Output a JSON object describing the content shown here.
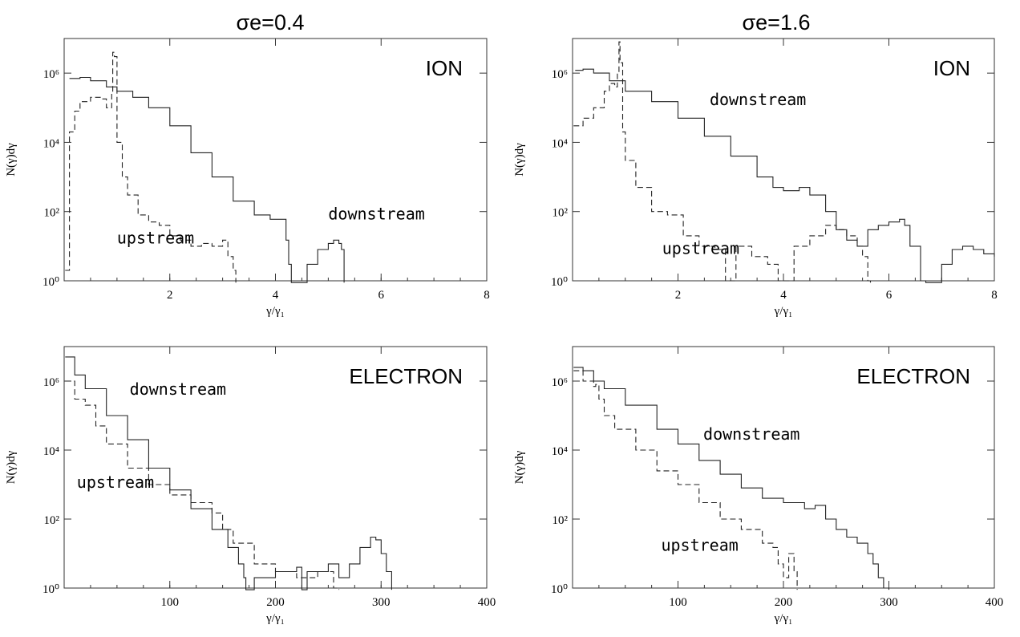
{
  "column_titles": [
    "σe=0.4",
    "σe=1.6"
  ],
  "chart_data": [
    {
      "type": "line",
      "scale_y": "log",
      "ylim": [
        1,
        10000000
      ],
      "xlim": [
        0,
        8
      ],
      "xticks": [
        2,
        4,
        6,
        8
      ],
      "yticks": [
        1,
        100,
        10000,
        1000000
      ],
      "ytick_labels": [
        "10⁰",
        "10²",
        "10⁴",
        "10⁶"
      ],
      "xlabel": "γ/γ₁",
      "ylabel": "N(γ)dγ",
      "label": "ION",
      "annotations": [
        {
          "text": "downstream",
          "x": 5.0,
          "y": 60
        },
        {
          "text": "upstream",
          "x": 1.0,
          "y": 12
        }
      ],
      "series": [
        {
          "name": "downstream",
          "style": "solid",
          "x": [
            0.1,
            0.3,
            0.5,
            0.8,
            1.0,
            1.3,
            1.6,
            2.0,
            2.4,
            2.8,
            3.2,
            3.6,
            3.9,
            4.2,
            4.25,
            4.3,
            4.55,
            4.6,
            4.8,
            5.0,
            5.1,
            5.2,
            5.25,
            5.3
          ],
          "y": [
            700000,
            750000,
            600000,
            400000,
            300000,
            200000,
            100000,
            30000,
            5000,
            1000,
            200,
            80,
            60,
            15,
            3,
            0,
            0,
            3,
            8,
            12,
            15,
            12,
            8,
            0
          ]
        },
        {
          "name": "upstream",
          "style": "dashed",
          "x": [
            0.02,
            0.1,
            0.2,
            0.3,
            0.5,
            0.7,
            0.8,
            0.9,
            0.92,
            0.95,
            1.0,
            1.1,
            1.2,
            1.4,
            1.6,
            1.8,
            2.0,
            2.2,
            2.4,
            2.6,
            2.8,
            3.0,
            3.1,
            3.2,
            3.25
          ],
          "y": [
            2,
            20000,
            80000,
            150000,
            200000,
            180000,
            100000,
            300000,
            4000000,
            3000000,
            10000,
            1000,
            300,
            80,
            50,
            40,
            20,
            15,
            10,
            12,
            10,
            15,
            5,
            2,
            0
          ]
        }
      ]
    },
    {
      "type": "line",
      "scale_y": "log",
      "ylim": [
        1,
        10000000
      ],
      "xlim": [
        0,
        8
      ],
      "xticks": [
        2,
        4,
        6,
        8
      ],
      "yticks": [
        1,
        100,
        10000,
        1000000
      ],
      "ytick_labels": [
        "10⁰",
        "10²",
        "10⁴",
        "10⁶"
      ],
      "xlabel": "γ/γ₁",
      "ylabel": "N(γ)dγ",
      "label": "ION",
      "annotations": [
        {
          "text": "downstream",
          "x": 2.6,
          "y": 120000
        },
        {
          "text": "upstream",
          "x": 1.7,
          "y": 6
        }
      ],
      "series": [
        {
          "name": "downstream",
          "style": "solid",
          "x": [
            0.05,
            0.2,
            0.4,
            0.7,
            1.0,
            1.5,
            2.0,
            2.5,
            3.0,
            3.5,
            3.8,
            4.0,
            4.3,
            4.5,
            4.8,
            5.0,
            5.2,
            5.4,
            5.6,
            5.8,
            6.0,
            6.2,
            6.3,
            6.4,
            6.6,
            6.7,
            6.8,
            7.0,
            7.2,
            7.4,
            7.6,
            7.8,
            8.0
          ],
          "y": [
            1200000,
            1300000,
            1000000,
            600000,
            300000,
            150000,
            50000,
            15000,
            4000,
            1000,
            500,
            400,
            500,
            300,
            100,
            30,
            15,
            10,
            30,
            40,
            50,
            60,
            40,
            10,
            1,
            0,
            0,
            3,
            8,
            10,
            8,
            6,
            5
          ]
        },
        {
          "name": "upstream",
          "style": "dashed",
          "x": [
            0.02,
            0.2,
            0.4,
            0.6,
            0.7,
            0.8,
            0.85,
            0.88,
            0.9,
            0.95,
            1.0,
            1.2,
            1.5,
            1.8,
            2.1,
            2.4,
            2.7,
            2.9,
            3.1,
            3.4,
            3.7,
            3.9,
            4.2,
            4.5,
            4.8,
            5.0,
            5.2,
            5.4,
            5.5,
            5.6,
            5.65
          ],
          "y": [
            30000,
            50000,
            100000,
            300000,
            500000,
            400000,
            1000000,
            8000000,
            2000000,
            20000,
            3000,
            500,
            100,
            80,
            20,
            10,
            8,
            1,
            10,
            5,
            3,
            1,
            10,
            20,
            40,
            30,
            20,
            10,
            5,
            1,
            0
          ]
        }
      ]
    },
    {
      "type": "line",
      "scale_y": "log",
      "ylim": [
        1,
        10000000
      ],
      "xlim": [
        0,
        400
      ],
      "xticks": [
        100,
        200,
        300,
        400
      ],
      "yticks": [
        1,
        100,
        10000,
        1000000
      ],
      "ytick_labels": [
        "10⁰",
        "10²",
        "10⁴",
        "10⁶"
      ],
      "xlabel": "γ/γ₁",
      "ylabel": "N(γ)dγ",
      "label": "ELECTRON",
      "annotations": [
        {
          "text": "downstream",
          "x": 62,
          "y": 400000
        },
        {
          "text": "upstream",
          "x": 12,
          "y": 800
        }
      ],
      "series": [
        {
          "name": "downstream",
          "style": "solid",
          "x": [
            1,
            10,
            20,
            40,
            60,
            80,
            100,
            120,
            140,
            155,
            165,
            170,
            172,
            180,
            200,
            220,
            225,
            230,
            250,
            260,
            270,
            280,
            290,
            295,
            300,
            305,
            310
          ],
          "y": [
            5000000,
            1500000,
            600000,
            100000,
            20000,
            3000,
            700,
            200,
            50,
            15,
            5,
            2,
            0,
            2,
            3,
            4,
            0,
            3,
            5,
            2,
            5,
            15,
            30,
            25,
            10,
            3,
            0
          ]
        },
        {
          "name": "upstream",
          "style": "dashed",
          "x": [
            1,
            10,
            20,
            30,
            40,
            60,
            80,
            100,
            120,
            140,
            150,
            160,
            180,
            200,
            220,
            240,
            255,
            260
          ],
          "y": [
            1000000,
            300000,
            200000,
            50000,
            15000,
            3000,
            1000,
            500,
            300,
            150,
            50,
            20,
            5,
            3,
            2,
            3,
            1,
            0
          ]
        }
      ]
    },
    {
      "type": "line",
      "scale_y": "log",
      "ylim": [
        1,
        10000000
      ],
      "xlim": [
        0,
        400
      ],
      "xticks": [
        100,
        200,
        300,
        400
      ],
      "yticks": [
        1,
        100,
        10000,
        1000000
      ],
      "ytick_labels": [
        "10⁰",
        "10²",
        "10⁴",
        "10⁶"
      ],
      "xlabel": "γ/γ₁",
      "ylabel": "N(γ)dγ",
      "label": "ELECTRON",
      "annotations": [
        {
          "text": "downstream",
          "x": 124,
          "y": 20000
        },
        {
          "text": "upstream",
          "x": 84,
          "y": 12
        }
      ],
      "series": [
        {
          "name": "downstream",
          "style": "solid",
          "x": [
            1,
            10,
            20,
            30,
            50,
            80,
            100,
            120,
            140,
            160,
            180,
            200,
            220,
            230,
            240,
            250,
            260,
            270,
            280,
            285,
            290,
            295,
            300
          ],
          "y": [
            2500000,
            2000000,
            1000000,
            600000,
            200000,
            40000,
            15000,
            5000,
            2000,
            800,
            400,
            300,
            200,
            250,
            100,
            50,
            30,
            20,
            10,
            5,
            2,
            1,
            0
          ]
        },
        {
          "name": "upstream",
          "style": "dashed",
          "x": [
            1,
            10,
            20,
            22,
            25,
            30,
            40,
            60,
            80,
            100,
            120,
            140,
            160,
            180,
            190,
            195,
            200,
            205,
            210,
            213
          ],
          "y": [
            2000000,
            1000000,
            700000,
            800000,
            300000,
            100000,
            40000,
            10000,
            2500,
            1000,
            300,
            100,
            50,
            20,
            15,
            5,
            2,
            10,
            3,
            0
          ]
        }
      ]
    }
  ]
}
